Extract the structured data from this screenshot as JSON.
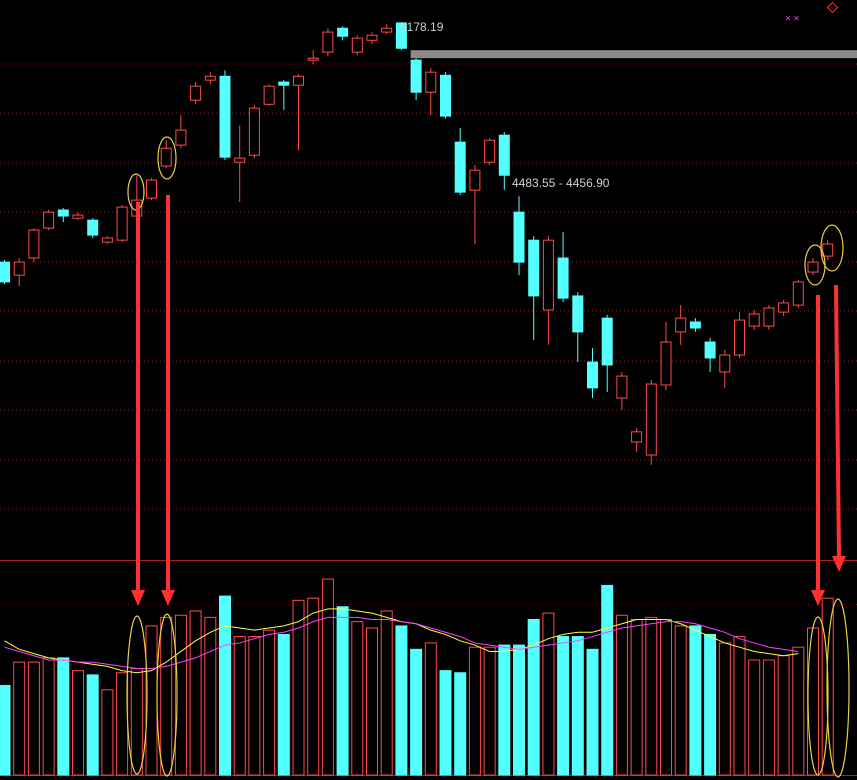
{
  "chart_data": [
    {
      "type": "candlestick",
      "up_color": "#ff4a4a",
      "down_color": "#54ffff",
      "ylim": [
        2950,
        5270
      ],
      "open": [
        4184,
        4130,
        4201,
        4325,
        4400,
        4366,
        4358,
        4267,
        4275,
        4375,
        4449,
        4582,
        4669,
        4855,
        4938,
        4954,
        4598,
        4627,
        4838,
        4930,
        4917,
        5021,
        5054,
        5153,
        5054,
        5103,
        5137,
        5175,
        5021,
        4888,
        4958,
        4681,
        4482,
        4598,
        4710,
        4391,
        4275,
        3986,
        4201,
        4044,
        3770,
        3952,
        3621,
        3439,
        3385,
        3675,
        3895,
        3936,
        3853,
        3729,
        3799,
        3919,
        3919,
        3977,
        4006,
        4143,
        4209
      ],
      "high": [
        4193,
        4201,
        4325,
        4400,
        4408,
        4391,
        4366,
        4292,
        4420,
        4544,
        4532,
        4689,
        4793,
        4930,
        4971,
        4979,
        4751,
        4834,
        4921,
        4938,
        4963,
        5062,
        5153,
        5161,
        5124,
        5137,
        5170,
        5178.19,
        5029,
        4987,
        4971,
        4739,
        4586,
        4698,
        4723,
        4456.9,
        4292,
        4292,
        4309,
        4060,
        3828,
        3965,
        3729,
        3497,
        3696,
        3936,
        4006,
        3952,
        3870,
        3820,
        3977,
        3986,
        4006,
        4027,
        4110,
        4201,
        4275
      ],
      "low": [
        4093,
        4085,
        4184,
        4317,
        4350,
        4358,
        4284,
        4259,
        4267,
        4366,
        4441,
        4573,
        4656,
        4838,
        4921,
        4607,
        4433,
        4615,
        4830,
        4814,
        4648,
        5004,
        5037,
        5103,
        5041,
        5087,
        5128,
        5062,
        4855,
        4793,
        4780,
        4462,
        4259,
        4586,
        4483.55,
        4130,
        3861,
        3841,
        4019,
        3770,
        3621,
        3646,
        3572,
        3398,
        3344,
        3654,
        3841,
        3895,
        3729,
        3663,
        3787,
        3903,
        3903,
        3961,
        3994,
        4130,
        4193
      ],
      "close": [
        4102,
        4184,
        4317,
        4391,
        4375,
        4379,
        4296,
        4284,
        4412,
        4441,
        4524,
        4656,
        4731,
        4913,
        4954,
        4619,
        4615,
        4822,
        4913,
        4917,
        4954,
        5029,
        5137,
        5120,
        5112,
        5124,
        5153,
        5070,
        4888,
        4971,
        4789,
        4474,
        4565,
        4689,
        4544,
        4184,
        4044,
        4275,
        4035,
        3895,
        3663,
        3758,
        3712,
        3481,
        3679,
        3853,
        3952,
        3911,
        3787,
        3799,
        3944,
        3969,
        3994,
        4015,
        4102,
        4184,
        4259
      ],
      "gap_label": "4483.55 - 4456.90",
      "gap_color": "#8c8c8c"
    },
    {
      "type": "bar",
      "ylim": [
        0,
        100
      ],
      "values": [
        42,
        53,
        53,
        55,
        55,
        49,
        47,
        40,
        48,
        50,
        70,
        74,
        75,
        77,
        74,
        84,
        65,
        65,
        68,
        66,
        82,
        83,
        92,
        79,
        72,
        69,
        77,
        70,
        59,
        62,
        49,
        48,
        60,
        60,
        61,
        61,
        73,
        76,
        65,
        65,
        59,
        89,
        75,
        73,
        74,
        73,
        70,
        70,
        66,
        62,
        65,
        54,
        54,
        56,
        60,
        69,
        83
      ],
      "lines": [
        {
          "color": "#ffff40",
          "values": [
            63,
            59,
            57,
            55,
            54,
            53,
            52,
            51,
            49,
            48,
            49,
            53,
            58,
            63,
            67,
            70,
            69,
            68,
            69,
            70,
            72,
            76,
            78,
            78,
            77,
            76,
            74,
            72,
            71,
            68,
            66,
            63,
            61,
            58,
            58,
            59,
            61,
            64,
            66,
            67,
            67,
            69,
            71,
            73,
            73,
            73,
            71,
            68,
            65,
            62,
            60,
            58,
            57,
            56,
            57,
            null,
            null
          ]
        },
        {
          "color": "#ff40ff",
          "values": [
            60,
            58,
            56,
            54,
            54,
            53,
            53,
            52,
            51,
            50,
            50,
            51,
            53,
            55,
            58,
            61,
            62,
            64,
            66,
            67,
            69,
            72,
            74,
            74,
            74,
            73,
            73,
            72,
            71,
            69,
            67,
            65,
            62,
            61,
            60,
            59,
            60,
            61,
            62,
            63,
            65,
            67,
            69,
            70,
            71,
            72,
            72,
            71,
            69,
            67,
            64,
            62,
            60,
            59,
            58,
            null,
            null
          ]
        }
      ]
    }
  ]
}
